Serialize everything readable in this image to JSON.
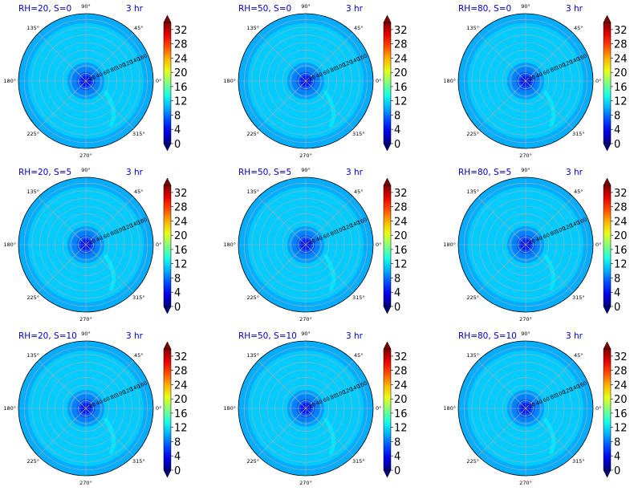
{
  "chart_data": {
    "type": "polar-contour",
    "layout": "3x3 grid",
    "time_label": "3 hr",
    "angle_ticks": [
      90,
      45,
      0,
      315,
      270,
      225,
      180,
      135
    ],
    "angle_tick_labels": [
      "90°",
      "45°",
      "0°",
      "315°",
      "270°",
      "225°",
      "180°",
      "135°"
    ],
    "radial_ticks": [
      20,
      40,
      60,
      80,
      100,
      120,
      140,
      160
    ],
    "radial_tick_labels": [
      "20",
      "40",
      "60",
      "80",
      "100",
      "120",
      "140",
      "160"
    ],
    "rlim": [
      0,
      175
    ],
    "colorbar": {
      "min": 0,
      "max": 34,
      "ticks": [
        0,
        4,
        8,
        12,
        16,
        20,
        24,
        28,
        32
      ],
      "tick_labels": [
        "0",
        "4",
        "8",
        "12",
        "16",
        "20",
        "24",
        "28",
        "32"
      ],
      "colormap": "jet",
      "extend": "both"
    },
    "panels": [
      {
        "title": "RH=20, S=0",
        "time": "3 hr",
        "rh": 20,
        "s": 0
      },
      {
        "title": "RH=50, S=0",
        "time": "3 hr",
        "rh": 50,
        "s": 0
      },
      {
        "title": "RH=80, S=0",
        "time": "3 hr",
        "rh": 80,
        "s": 0
      },
      {
        "title": "RH=20, S=5",
        "time": "3 hr",
        "rh": 20,
        "s": 5
      },
      {
        "title": "RH=50, S=5",
        "time": "3 hr",
        "rh": 50,
        "s": 5
      },
      {
        "title": "RH=80, S=5",
        "time": "3 hr",
        "rh": 80,
        "s": 5
      },
      {
        "title": "RH=20, S=10",
        "time": "3 hr",
        "rh": 20,
        "s": 10
      },
      {
        "title": "RH=50, S=10",
        "time": "3 hr",
        "rh": 50,
        "s": 10
      },
      {
        "title": "RH=80, S=10",
        "time": "3 hr",
        "rh": 80,
        "s": 10
      }
    ],
    "field": {
      "description_levels": [
        {
          "r_max": 6,
          "value": 2
        },
        {
          "r_max": 14,
          "value": 5
        },
        {
          "r_max": 24,
          "value": 7
        },
        {
          "r_max": 36,
          "value": 8.5
        },
        {
          "r_max": 48,
          "value": 9.5
        },
        {
          "r_max": 150,
          "value": 11
        },
        {
          "r_max": 175,
          "value": 10
        }
      ],
      "band": {
        "points": [
          [
            330,
            60
          ],
          [
            322,
            80
          ],
          [
            315,
            100
          ],
          [
            308,
            118
          ],
          [
            300,
            132
          ]
        ],
        "value": 12
      }
    }
  }
}
